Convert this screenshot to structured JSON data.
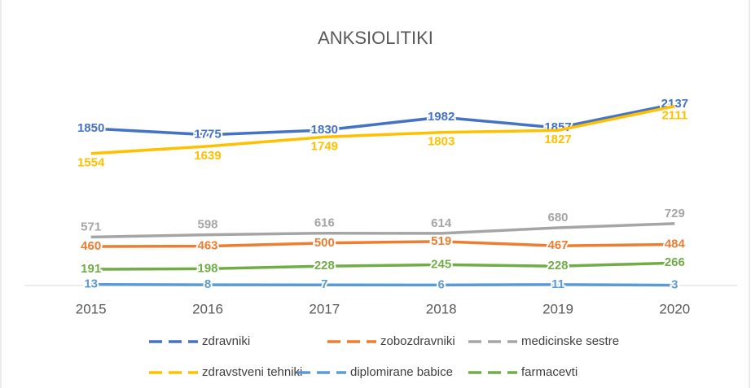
{
  "chart_data": {
    "type": "line",
    "title": "ANKSIOLITIKI",
    "categories": [
      "2015",
      "2016",
      "2017",
      "2018",
      "2019",
      "2020"
    ],
    "ylim": [
      0,
      2500
    ],
    "series": [
      {
        "name": "zdravniki",
        "color": "#4472c4",
        "values": [
          1850,
          1775,
          1830,
          1982,
          1857,
          2137
        ]
      },
      {
        "name": "zobozdravniki",
        "color": "#ed7d31",
        "values": [
          460,
          463,
          500,
          519,
          467,
          484
        ]
      },
      {
        "name": "medicinske sestre",
        "color": "#a5a5a5",
        "values": [
          571,
          598,
          616,
          614,
          680,
          729
        ]
      },
      {
        "name": "zdravstveni tehniki",
        "color": "#ffc000",
        "values": [
          1554,
          1639,
          1749,
          1803,
          1827,
          2111
        ]
      },
      {
        "name": "diplomirane babice",
        "color": "#5b9bd5",
        "values": [
          13,
          8,
          7,
          6,
          11,
          3
        ]
      },
      {
        "name": "farmacevti",
        "color": "#70ad47",
        "values": [
          191,
          198,
          228,
          245,
          228,
          266
        ]
      }
    ]
  }
}
